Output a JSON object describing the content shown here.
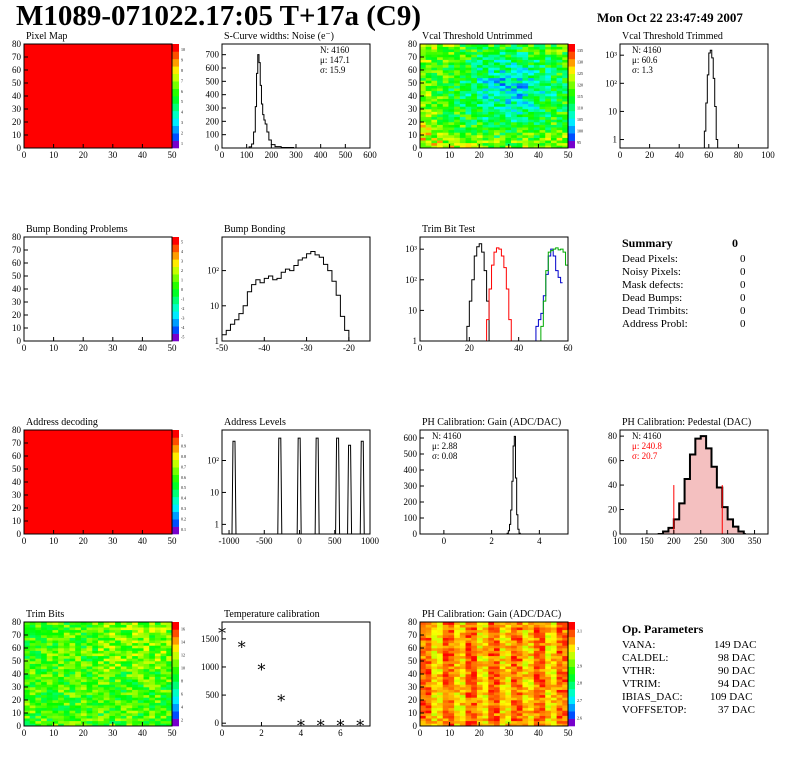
{
  "header": {
    "title": "M1089-071022.17:05 T+17a (C9)",
    "date": "Mon Oct 22 23:47:49 2007"
  },
  "colors": {
    "red": "#ff0000",
    "hist": "#000000",
    "green": "#00aa00",
    "blue": "#0000cc"
  },
  "chart_data": [
    {
      "id": "pixel-map",
      "type": "heatmap",
      "title": "Pixel Map",
      "x_ticks": [
        "0",
        "10",
        "20",
        "30",
        "40",
        "50"
      ],
      "y_ticks": [
        "0",
        "10",
        "20",
        "30",
        "40",
        "50",
        "60",
        "70",
        "80"
      ],
      "palette_ticks": [
        "1",
        "2",
        "3",
        "4",
        "5",
        "6",
        "7",
        "8",
        "9",
        "10"
      ],
      "fill": "uniform-red"
    },
    {
      "id": "scurve-noise",
      "type": "histogram",
      "title": "S-Curve widths: Noise (e⁻)",
      "x_ticks": [
        "0",
        "100",
        "200",
        "300",
        "400",
        "500",
        "600"
      ],
      "y_ticks": [
        "0",
        "100",
        "200",
        "300",
        "400",
        "500",
        "600",
        "700"
      ],
      "xlim": [
        0,
        600
      ],
      "ylim": [
        0,
        780
      ],
      "stats": [
        "N: 4160",
        "μ: 147.1",
        "σ: 15.9"
      ],
      "series": [
        {
          "values": [
            [
              95,
              0
            ],
            [
              110,
              8
            ],
            [
              120,
              30
            ],
            [
              128,
              120
            ],
            [
              135,
              310
            ],
            [
              140,
              560
            ],
            [
              145,
              700
            ],
            [
              150,
              640
            ],
            [
              155,
              470
            ],
            [
              160,
              330
            ],
            [
              165,
              250
            ],
            [
              170,
              210
            ],
            [
              175,
              180
            ],
            [
              182,
              120
            ],
            [
              190,
              60
            ],
            [
              200,
              25
            ],
            [
              215,
              10
            ],
            [
              240,
              4
            ],
            [
              290,
              0
            ]
          ]
        }
      ]
    },
    {
      "id": "vcal-untrimmed",
      "type": "heatmap",
      "title": "Vcal Threshold Untrimmed",
      "x_ticks": [
        "0",
        "10",
        "20",
        "30",
        "40",
        "50"
      ],
      "y_ticks": [
        "0",
        "10",
        "20",
        "30",
        "40",
        "50",
        "60",
        "70",
        "80"
      ],
      "palette_ticks": [
        "95",
        "100",
        "105",
        "110",
        "115",
        "120",
        "125",
        "130",
        "135"
      ],
      "fill": "center-low-threshold"
    },
    {
      "id": "vcal-trimmed",
      "type": "histogram",
      "title": "Vcal Threshold Trimmed",
      "x_ticks": [
        "0",
        "20",
        "40",
        "60",
        "80",
        "100"
      ],
      "y_ticks": [
        "1",
        "10",
        "10²",
        "10³"
      ],
      "log_y": true,
      "xlim": [
        0,
        100
      ],
      "ylim": [
        0.5,
        2500
      ],
      "stats": [
        "N: 4160",
        "μ: 60.6",
        "σ:  1.3"
      ],
      "series": [
        {
          "values": [
            [
              56,
              0.5
            ],
            [
              57,
              2
            ],
            [
              58,
              20
            ],
            [
              59,
              200
            ],
            [
              60,
              1200
            ],
            [
              61,
              1500
            ],
            [
              62,
              800
            ],
            [
              63,
              150
            ],
            [
              64,
              15
            ],
            [
              65,
              1
            ],
            [
              66,
              0.5
            ]
          ]
        }
      ]
    },
    {
      "id": "bump-bonding-problems",
      "type": "heatmap",
      "title": "Bump Bonding Problems",
      "x_ticks": [
        "0",
        "10",
        "20",
        "30",
        "40",
        "50"
      ],
      "y_ticks": [
        "0",
        "10",
        "20",
        "30",
        "40",
        "50",
        "60",
        "70",
        "80"
      ],
      "palette_ticks": [
        "-5",
        "-4",
        "-3",
        "-2",
        "-1",
        "0",
        "1",
        "2",
        "3",
        "4",
        "5"
      ],
      "fill": "empty"
    },
    {
      "id": "bump-bonding",
      "type": "histogram",
      "title": "Bump Bonding",
      "x_ticks": [
        "-50",
        "-40",
        "-30",
        "-20"
      ],
      "y_ticks": [
        "1",
        "10",
        "10²"
      ],
      "log_y": true,
      "xlim": [
        -50,
        -15
      ],
      "ylim": [
        1,
        900
      ],
      "series": [
        {
          "values": [
            [
              -50,
              1.5
            ],
            [
              -49,
              2
            ],
            [
              -48,
              3
            ],
            [
              -47,
              4
            ],
            [
              -46,
              6
            ],
            [
              -45,
              10
            ],
            [
              -44,
              25
            ],
            [
              -43,
              40
            ],
            [
              -42,
              55
            ],
            [
              -41,
              45
            ],
            [
              -40,
              60
            ],
            [
              -39,
              70
            ],
            [
              -38,
              55
            ],
            [
              -37,
              60
            ],
            [
              -36,
              90
            ],
            [
              -35,
              110
            ],
            [
              -34,
              100
            ],
            [
              -33,
              140
            ],
            [
              -32,
              200
            ],
            [
              -31,
              230
            ],
            [
              -30,
              300
            ],
            [
              -29,
              350
            ],
            [
              -28,
              280
            ],
            [
              -27,
              240
            ],
            [
              -26,
              150
            ],
            [
              -25,
              100
            ],
            [
              -24,
              50
            ],
            [
              -23,
              20
            ],
            [
              -22,
              5
            ],
            [
              -21,
              2
            ],
            [
              -20,
              1
            ]
          ]
        }
      ]
    },
    {
      "id": "trim-bit-test",
      "type": "histogram",
      "title": "Trim Bit Test",
      "x_ticks": [
        "0",
        "20",
        "40",
        "60"
      ],
      "y_ticks": [
        "1",
        "10",
        "10²",
        "10³"
      ],
      "log_y": true,
      "xlim": [
        0,
        60
      ],
      "ylim": [
        1,
        2500
      ],
      "series": [
        {
          "color": "#000000",
          "values": [
            [
              18,
              1
            ],
            [
              19,
              3
            ],
            [
              20,
              20
            ],
            [
              21,
              100
            ],
            [
              22,
              600
            ],
            [
              23,
              1200
            ],
            [
              24,
              1500
            ],
            [
              25,
              800
            ],
            [
              26,
              200
            ],
            [
              27,
              20
            ],
            [
              28,
              1
            ]
          ]
        },
        {
          "color": "#ff0000",
          "values": [
            [
              26,
              1
            ],
            [
              27,
              5
            ],
            [
              28,
              50
            ],
            [
              29,
              300
            ],
            [
              30,
              800
            ],
            [
              31,
              1100
            ],
            [
              32,
              1000
            ],
            [
              33,
              600
            ],
            [
              34,
              250
            ],
            [
              35,
              50
            ],
            [
              36,
              5
            ],
            [
              37,
              1
            ]
          ]
        },
        {
          "color": "#0000cc",
          "values": [
            [
              46,
              1
            ],
            [
              47,
              3
            ],
            [
              48,
              5
            ],
            [
              49,
              8
            ],
            [
              50,
              30
            ],
            [
              51,
              150
            ],
            [
              52,
              600
            ],
            [
              53,
              1000
            ],
            [
              54,
              600
            ],
            [
              55,
              200
            ],
            [
              56,
              120
            ],
            [
              57,
              80
            ]
          ]
        },
        {
          "color": "#00aa00",
          "values": [
            [
              48,
              1
            ],
            [
              49,
              3
            ],
            [
              50,
              20
            ],
            [
              51,
              200
            ],
            [
              52,
              800
            ],
            [
              53,
              900
            ],
            [
              54,
              1000
            ],
            [
              55,
              1100
            ],
            [
              56,
              950
            ],
            [
              57,
              1000
            ],
            [
              58,
              800
            ],
            [
              59,
              300
            ]
          ]
        }
      ]
    },
    {
      "id": "address-decoding",
      "type": "heatmap",
      "title": "Address decoding",
      "x_ticks": [
        "0",
        "10",
        "20",
        "30",
        "40",
        "50"
      ],
      "y_ticks": [
        "0",
        "10",
        "20",
        "30",
        "40",
        "50",
        "60",
        "70",
        "80"
      ],
      "palette_ticks": [
        "0.1",
        "0.2",
        "0.3",
        "0.4",
        "0.5",
        "0.6",
        "0.7",
        "0.8",
        "0.9",
        "1"
      ],
      "fill": "uniform-red"
    },
    {
      "id": "address-levels",
      "type": "histogram",
      "title": "Address Levels",
      "x_ticks": [
        "-1000",
        "-500",
        "0",
        "500",
        "1000"
      ],
      "y_ticks": [
        "1",
        "10",
        "10²"
      ],
      "log_y": true,
      "xlim": [
        -1100,
        1000
      ],
      "ylim": [
        0.5,
        900
      ],
      "peaks": [
        -930,
        -280,
        -5,
        250,
        540,
        710,
        890
      ],
      "peak_heights": [
        400,
        500,
        500,
        500,
        500,
        300,
        400
      ]
    },
    {
      "id": "ph-gain",
      "type": "histogram",
      "title": "PH Calibration: Gain (ADC/DAC)",
      "x_ticks": [
        "0",
        "2",
        "4"
      ],
      "y_ticks": [
        "0",
        "100",
        "200",
        "300",
        "400",
        "500",
        "600"
      ],
      "xlim": [
        -1,
        5.2
      ],
      "ylim": [
        0,
        650
      ],
      "stats": [
        "N: 4160",
        "μ: 2.88",
        "σ: 0.08"
      ],
      "series": [
        {
          "values": [
            [
              2.6,
              0
            ],
            [
              2.65,
              5
            ],
            [
              2.7,
              20
            ],
            [
              2.75,
              60
            ],
            [
              2.8,
              150
            ],
            [
              2.85,
              330
            ],
            [
              2.9,
              550
            ],
            [
              2.95,
              610
            ],
            [
              3.0,
              350
            ],
            [
              3.05,
              120
            ],
            [
              3.1,
              30
            ],
            [
              3.15,
              5
            ],
            [
              3.2,
              0
            ]
          ]
        }
      ]
    },
    {
      "id": "ph-pedestal",
      "type": "histogram",
      "title": "PH Calibration: Pedestal (DAC)",
      "x_ticks": [
        "100",
        "150",
        "200",
        "250",
        "300",
        "350"
      ],
      "y_ticks": [
        "0",
        "20",
        "40",
        "60",
        "80"
      ],
      "xlim": [
        100,
        375
      ],
      "ylim": [
        0,
        85
      ],
      "stats": [
        "N: 4160",
        "μ: 240.8",
        "σ: 20.7"
      ],
      "series": [
        {
          "values": [
            [
              170,
              0
            ],
            [
              180,
              2
            ],
            [
              190,
              5
            ],
            [
              200,
              12
            ],
            [
              210,
              25
            ],
            [
              220,
              45
            ],
            [
              230,
              65
            ],
            [
              240,
              78
            ],
            [
              250,
              80
            ],
            [
              260,
              70
            ],
            [
              270,
              55
            ],
            [
              280,
              38
            ],
            [
              290,
              22
            ],
            [
              300,
              12
            ],
            [
              310,
              6
            ],
            [
              320,
              2
            ],
            [
              330,
              0
            ]
          ]
        }
      ]
    },
    {
      "id": "trim-bits",
      "type": "heatmap",
      "title": "Trim Bits",
      "x_ticks": [
        "0",
        "10",
        "20",
        "30",
        "40",
        "50"
      ],
      "y_ticks": [
        "0",
        "10",
        "20",
        "30",
        "40",
        "50",
        "60",
        "70",
        "80"
      ],
      "palette_ticks": [
        "2",
        "4",
        "6",
        "8",
        "10",
        "12",
        "14",
        "16"
      ],
      "fill": "green-yellow-noise"
    },
    {
      "id": "temperature-calibration",
      "type": "scatter",
      "title": "Temperature calibration",
      "x_ticks": [
        "0",
        "2",
        "4",
        "6"
      ],
      "y_ticks": [
        "0",
        "500",
        "1000",
        "1500"
      ],
      "xlim": [
        0,
        7.5
      ],
      "ylim": [
        -50,
        1800
      ],
      "x": [
        0,
        1,
        2,
        3,
        4,
        5,
        6,
        7
      ],
      "y": [
        1650,
        1400,
        1000,
        450,
        0,
        0,
        0,
        0
      ]
    },
    {
      "id": "ph-gain-map",
      "type": "heatmap",
      "title": "PH Calibration: Gain (ADC/DAC)",
      "x_ticks": [
        "0",
        "10",
        "20",
        "30",
        "40",
        "50"
      ],
      "y_ticks": [
        "0",
        "10",
        "20",
        "30",
        "40",
        "50",
        "60",
        "70",
        "80"
      ],
      "palette_ticks": [
        "2.6",
        "2.7",
        "2.8",
        "2.9",
        "3",
        "3.1"
      ],
      "fill": "red-orange-columns"
    }
  ],
  "summary": {
    "title": "Summary",
    "total": "0",
    "rows": [
      [
        "Dead Pixels:",
        "0"
      ],
      [
        "Noisy Pixels:",
        "0"
      ],
      [
        "Mask defects:",
        "0"
      ],
      [
        "Dead Bumps:",
        "0"
      ],
      [
        "Dead Trimbits:",
        "0"
      ],
      [
        "Address Probl:",
        "0"
      ]
    ]
  },
  "op_params": {
    "title": "Op. Parameters",
    "rows": [
      [
        "VANA:",
        "149 DAC"
      ],
      [
        "CALDEL:",
        "98 DAC"
      ],
      [
        "VTHR:",
        "90 DAC"
      ],
      [
        "VTRIM:",
        "94 DAC"
      ],
      [
        "IBIAS_DAC:",
        "109 DAC"
      ],
      [
        "VOFFSETOP:",
        "37 DAC"
      ]
    ]
  }
}
